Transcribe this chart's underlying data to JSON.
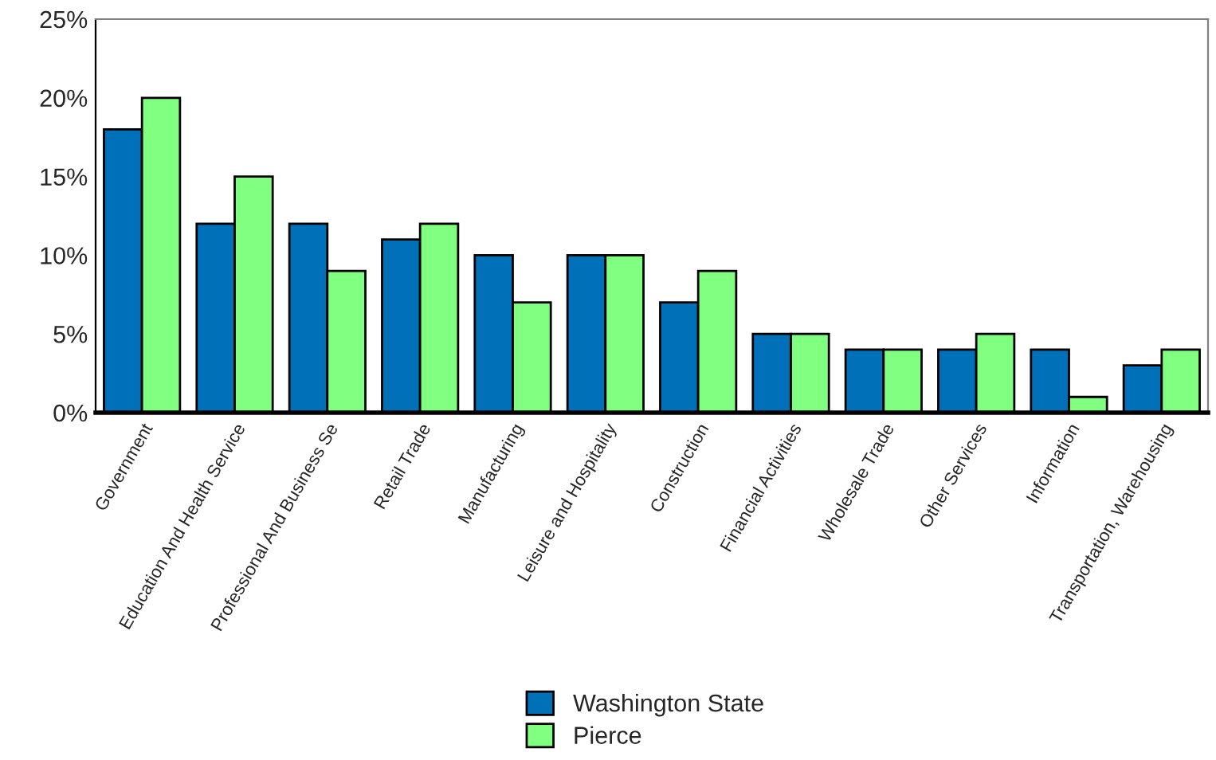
{
  "chart_data": {
    "type": "bar",
    "categories": [
      "Government",
      "Education And Health Service",
      "Professional And Business Se",
      "Retail Trade",
      "Manufacturing",
      "Leisure and Hospitality",
      "Construction",
      "Financial Activities",
      "Wholesale Trade",
      "Other Services",
      "Information",
      "Transportation, Warehousing"
    ],
    "series": [
      {
        "name": "Washington State",
        "color": "#0070b8",
        "values": [
          18,
          12,
          12,
          11,
          10,
          10,
          7,
          5,
          4,
          4,
          4,
          3
        ]
      },
      {
        "name": "Pierce",
        "color": "#80ff80",
        "values": [
          20,
          15,
          9,
          12,
          7,
          10,
          9,
          5,
          4,
          5,
          1,
          4
        ]
      }
    ],
    "ylim": [
      0,
      25
    ],
    "yticks": [
      {
        "value": 0,
        "label": "0%"
      },
      {
        "value": 5,
        "label": "5%"
      },
      {
        "value": 10,
        "label": "10%"
      },
      {
        "value": 15,
        "label": "15%"
      },
      {
        "value": 20,
        "label": "20%"
      },
      {
        "value": 25,
        "label": "25%"
      }
    ],
    "grid": false,
    "legend": "bottom"
  }
}
